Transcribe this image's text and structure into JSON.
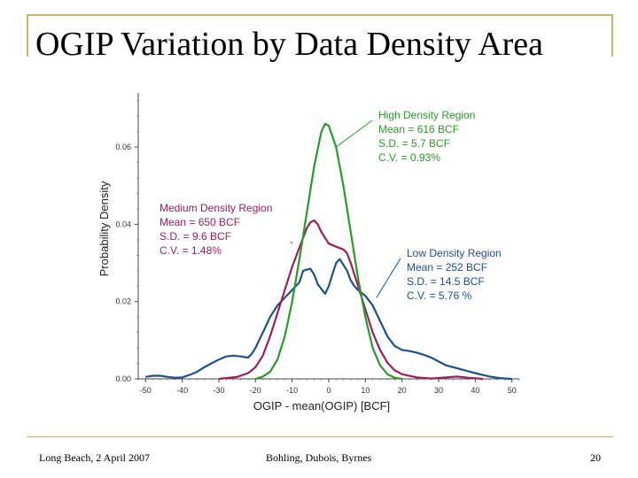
{
  "slide": {
    "title": "OGIP Variation by Data Density Area",
    "footer_left": "Long Beach, 2 April 2007",
    "footer_center": "Bohling, Dubois, Byrnes",
    "footer_right": "20"
  },
  "colors": {
    "frame": "#c9b36a",
    "high": "#2a9a2a",
    "medium": "#9a2060",
    "low": "#1f4f8a"
  },
  "chart_data": {
    "type": "line",
    "title": "",
    "xlabel": "OGIP - mean(OGIP) [BCF]",
    "ylabel": "Probability Density",
    "xlim": [
      -52,
      52
    ],
    "ylim": [
      0,
      0.074
    ],
    "xticks": [
      -50,
      -40,
      -30,
      -20,
      -10,
      0,
      10,
      20,
      30,
      40,
      50
    ],
    "yticks": [
      0.0,
      0.02,
      0.04,
      0.06
    ],
    "ytick_labels": [
      "0.00",
      "0.02",
      "0.04",
      "0.06"
    ],
    "grid": false,
    "series": [
      {
        "name": "High Density Region",
        "color": "#2a9a2a",
        "points": [
          [
            -20,
            0
          ],
          [
            -18,
            0.0006
          ],
          [
            -16,
            0.0018
          ],
          [
            -14,
            0.005
          ],
          [
            -12,
            0.011
          ],
          [
            -10,
            0.02
          ],
          [
            -8,
            0.031
          ],
          [
            -6,
            0.043
          ],
          [
            -4,
            0.055
          ],
          [
            -2,
            0.064
          ],
          [
            -1,
            0.066
          ],
          [
            0,
            0.0655
          ],
          [
            2,
            0.06
          ],
          [
            4,
            0.05
          ],
          [
            6,
            0.038
          ],
          [
            8,
            0.026
          ],
          [
            10,
            0.016
          ],
          [
            12,
            0.008
          ],
          [
            14,
            0.0035
          ],
          [
            16,
            0.0012
          ],
          [
            18,
            0.0003
          ],
          [
            20,
            0
          ]
        ]
      },
      {
        "name": "Medium Density Region",
        "color": "#9a2060",
        "points": [
          [
            -30,
            0
          ],
          [
            -25,
            0.0005
          ],
          [
            -22,
            0.0015
          ],
          [
            -20,
            0.003
          ],
          [
            -18,
            0.006
          ],
          [
            -16,
            0.011
          ],
          [
            -14,
            0.017
          ],
          [
            -12,
            0.023
          ],
          [
            -10,
            0.029
          ],
          [
            -8,
            0.034
          ],
          [
            -6,
            0.039
          ],
          [
            -5,
            0.0405
          ],
          [
            -4,
            0.041
          ],
          [
            -3,
            0.04
          ],
          [
            -2,
            0.038
          ],
          [
            0,
            0.035
          ],
          [
            2,
            0.0342
          ],
          [
            4,
            0.0335
          ],
          [
            5,
            0.0325
          ],
          [
            6,
            0.03
          ],
          [
            8,
            0.024
          ],
          [
            10,
            0.018
          ],
          [
            12,
            0.012
          ],
          [
            14,
            0.0075
          ],
          [
            16,
            0.0042
          ],
          [
            18,
            0.0022
          ],
          [
            20,
            0.0012
          ],
          [
            24,
            0.0004
          ],
          [
            28,
            0.0001
          ],
          [
            32,
            0.0004
          ],
          [
            35,
            0.0006
          ],
          [
            38,
            0.0003
          ],
          [
            42,
            0
          ]
        ]
      },
      {
        "name": "Low Density Region",
        "color": "#1f4f8a",
        "points": [
          [
            -50,
            0.0005
          ],
          [
            -48,
            0.0008
          ],
          [
            -46,
            0.0008
          ],
          [
            -44,
            0.0005
          ],
          [
            -42,
            0.0003
          ],
          [
            -40,
            0.0004
          ],
          [
            -38,
            0.001
          ],
          [
            -36,
            0.0018
          ],
          [
            -34,
            0.003
          ],
          [
            -32,
            0.004
          ],
          [
            -30,
            0.005
          ],
          [
            -28,
            0.0058
          ],
          [
            -26,
            0.006
          ],
          [
            -24,
            0.0058
          ],
          [
            -22,
            0.0055
          ],
          [
            -21,
            0.0065
          ],
          [
            -20,
            0.008
          ],
          [
            -18,
            0.012
          ],
          [
            -16,
            0.016
          ],
          [
            -14,
            0.019
          ],
          [
            -12,
            0.021
          ],
          [
            -10,
            0.023
          ],
          [
            -8,
            0.025
          ],
          [
            -7,
            0.028
          ],
          [
            -5,
            0.0285
          ],
          [
            -4,
            0.027
          ],
          [
            -3,
            0.0245
          ],
          [
            -1,
            0.022
          ],
          [
            0,
            0.024
          ],
          [
            1,
            0.027
          ],
          [
            2,
            0.03
          ],
          [
            3,
            0.031
          ],
          [
            4,
            0.0295
          ],
          [
            5,
            0.028
          ],
          [
            6,
            0.0255
          ],
          [
            7,
            0.024
          ],
          [
            8,
            0.023
          ],
          [
            10,
            0.0215
          ],
          [
            12,
            0.019
          ],
          [
            14,
            0.015
          ],
          [
            16,
            0.011
          ],
          [
            18,
            0.0085
          ],
          [
            20,
            0.0075
          ],
          [
            22,
            0.0072
          ],
          [
            24,
            0.0068
          ],
          [
            26,
            0.0062
          ],
          [
            28,
            0.0055
          ],
          [
            30,
            0.0045
          ],
          [
            32,
            0.0035
          ],
          [
            34,
            0.003
          ],
          [
            36,
            0.0025
          ],
          [
            38,
            0.002
          ],
          [
            40,
            0.0015
          ],
          [
            42,
            0.001
          ],
          [
            44,
            0.0006
          ],
          [
            46,
            0.0003
          ],
          [
            48,
            0.0001
          ],
          [
            50,
            0
          ]
        ]
      }
    ],
    "annotations": [
      {
        "series": 0,
        "lines": [
          "High Density Region",
          "Mean = 616 BCF",
          "S.D. = 5.7 BCF",
          "C.V. = 0.93%"
        ],
        "anchor": [
          2,
          0.06
        ]
      },
      {
        "series": 1,
        "lines": [
          "Medium Density Region",
          "Mean = 650 BCF",
          "S.D. = 9.6 BCF",
          "C.V. = 1.48%"
        ],
        "anchor": [
          -10,
          0.035
        ]
      },
      {
        "series": 2,
        "lines": [
          "Low Density Region",
          "Mean = 252 BCF",
          "S.D. = 14.5 BCF",
          "C.V. = 5.76 %"
        ],
        "anchor": [
          13,
          0.021
        ]
      }
    ]
  }
}
